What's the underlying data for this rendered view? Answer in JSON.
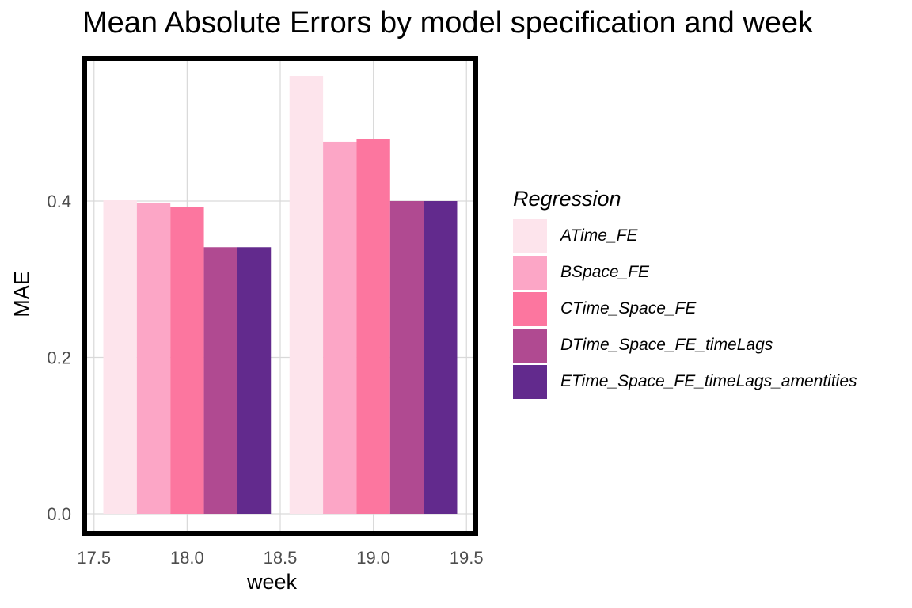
{
  "chart_data": {
    "type": "bar",
    "title": "Mean Absolute Errors by model specification and week",
    "xlabel": "week",
    "ylabel": "MAE",
    "xlim": [
      17.5,
      19.5
    ],
    "ylim": [
      0,
      0.56
    ],
    "x_ticks": [
      "17.5",
      "18.0",
      "18.5",
      "19.0",
      "19.5"
    ],
    "y_ticks": [
      "0.0",
      "0.2",
      "0.4"
    ],
    "x_tick_values": [
      17.5,
      18.0,
      18.5,
      19.0,
      19.5
    ],
    "y_tick_values": [
      0.0,
      0.2,
      0.4
    ],
    "categories": [
      18,
      19
    ],
    "grid": true,
    "legend_title": "Regression",
    "legend_position": "right",
    "series": [
      {
        "name": "ATime_FE",
        "color": "#FDE4EC",
        "values": [
          0.401,
          0.56
        ]
      },
      {
        "name": "BSpace_FE",
        "color": "#FCA6C6",
        "values": [
          0.398,
          0.476
        ]
      },
      {
        "name": "CTime_Space_FE",
        "color": "#FC769F",
        "values": [
          0.392,
          0.48
        ]
      },
      {
        "name": "DTime_Space_FE_timeLags",
        "color": "#B04A91",
        "values": [
          0.341,
          0.4
        ]
      },
      {
        "name": "ETime_Space_FE_timeLags_amentities",
        "color": "#622A8D",
        "values": [
          0.341,
          0.4
        ]
      }
    ]
  }
}
